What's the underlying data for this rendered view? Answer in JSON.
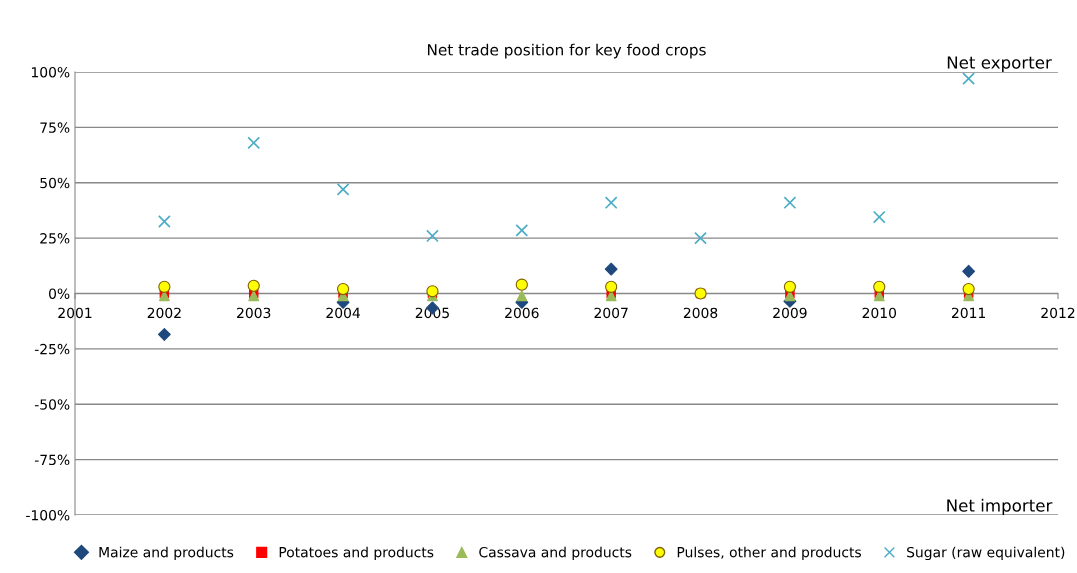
{
  "chart_data": {
    "type": "scatter",
    "title": "Net trade position for key food crops",
    "x": [
      2002,
      2003,
      2004,
      2005,
      2006,
      2007,
      2008,
      2009,
      2010,
      2011
    ],
    "series": [
      {
        "name": "Maize and products",
        "color": "#1f497d",
        "marker": "diamond",
        "values": [
          -18.5,
          null,
          -4,
          -6.5,
          -4,
          11,
          null,
          -3.5,
          null,
          10
        ]
      },
      {
        "name": "Potatoes and products",
        "color": "#ff0000",
        "marker": "square",
        "values": [
          0,
          0,
          0,
          0,
          null,
          0,
          0,
          0,
          0,
          0
        ]
      },
      {
        "name": "Cassava and products",
        "color": "#9bbb59",
        "marker": "triangle",
        "values": [
          -1,
          -1,
          -1,
          -1,
          -1,
          -1,
          null,
          -1,
          -1,
          -1
        ]
      },
      {
        "name": "Pulses, other and products",
        "color": "#ffff00",
        "marker": "circle",
        "values": [
          3,
          3.5,
          2,
          1,
          4,
          3,
          0,
          3,
          3,
          2
        ]
      },
      {
        "name": "Sugar (raw equivalent)",
        "color": "#4bacc6",
        "marker": "cross",
        "values": [
          32.5,
          68,
          47,
          26,
          28.5,
          41,
          25,
          41,
          34.5,
          97
        ]
      }
    ],
    "xlim": [
      2001,
      2012
    ],
    "xticks": [
      2001,
      2002,
      2003,
      2004,
      2005,
      2006,
      2007,
      2008,
      2009,
      2010,
      2011,
      2012
    ],
    "ylim": [
      -100,
      100
    ],
    "yticks": [
      {
        "value": -100,
        "label": "-100%"
      },
      {
        "value": -75,
        "label": "-75%"
      },
      {
        "value": -50,
        "label": "-50%"
      },
      {
        "value": -25,
        "label": "-25%"
      },
      {
        "value": 0,
        "label": "0%"
      },
      {
        "value": 25,
        "label": "25%"
      },
      {
        "value": 50,
        "label": "50%"
      },
      {
        "value": 75,
        "label": "75%"
      },
      {
        "value": 100,
        "label": "100%"
      }
    ],
    "grid": "y",
    "legend": "bottom",
    "annotations": [
      "Net exporter",
      "Net importer"
    ]
  }
}
